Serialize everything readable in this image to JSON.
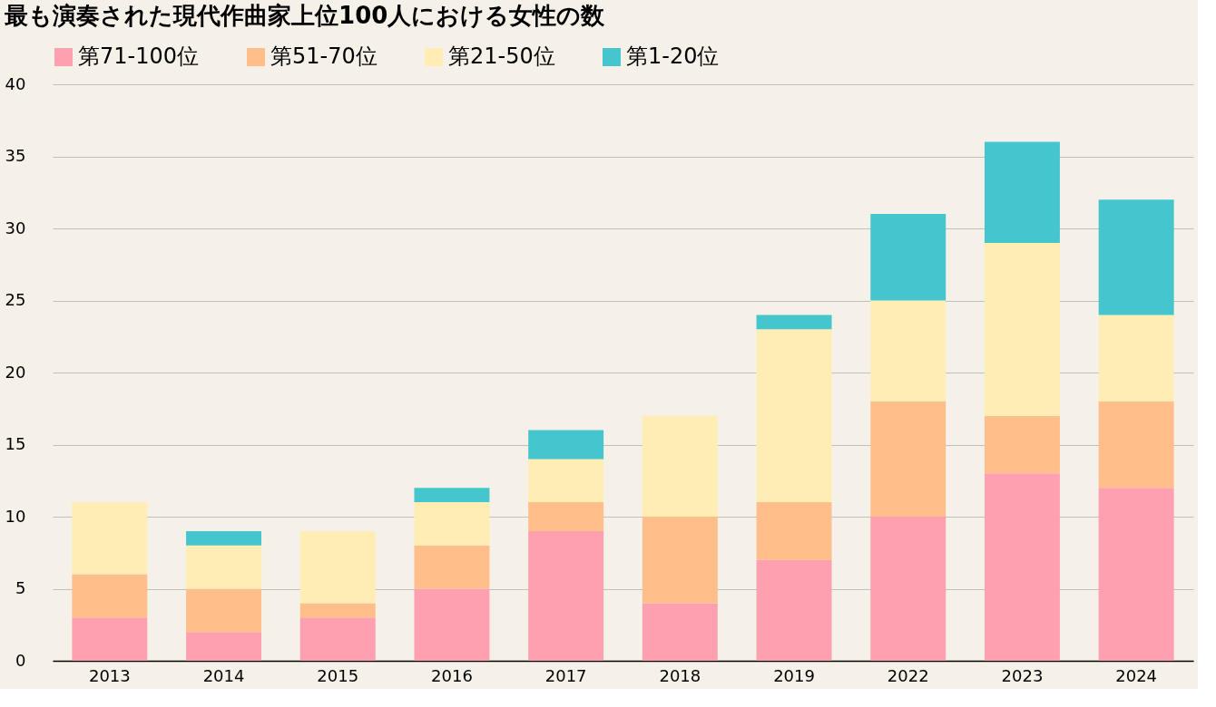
{
  "chart_data": {
    "type": "bar",
    "title": "最も演奏された現代作曲家上位100人における女性の数",
    "categories": [
      "2013",
      "2014",
      "2015",
      "2016",
      "2017",
      "2018",
      "2019",
      "2022",
      "2023",
      "2024"
    ],
    "stacked": true,
    "series": [
      {
        "name": "第71-100位",
        "color": "#ffa0b0",
        "values": [
          3,
          2,
          3,
          5,
          9,
          4,
          7,
          10,
          13,
          12
        ]
      },
      {
        "name": "第51-70位",
        "color": "#ffbe8a",
        "values": [
          3,
          3,
          1,
          3,
          2,
          6,
          4,
          8,
          4,
          6
        ]
      },
      {
        "name": "第21-50位",
        "color": "#ffedb3",
        "values": [
          5,
          3,
          5,
          3,
          3,
          7,
          12,
          7,
          12,
          6
        ]
      },
      {
        "name": "第1-20位",
        "color": "#45c6cf",
        "values": [
          0,
          1,
          0,
          1,
          2,
          0,
          1,
          6,
          7,
          8
        ]
      }
    ],
    "ylim": [
      0,
      40
    ],
    "yticks": [
      0,
      5,
      10,
      15,
      20,
      25,
      30,
      35,
      40
    ],
    "grid": "y",
    "legend": "top"
  }
}
